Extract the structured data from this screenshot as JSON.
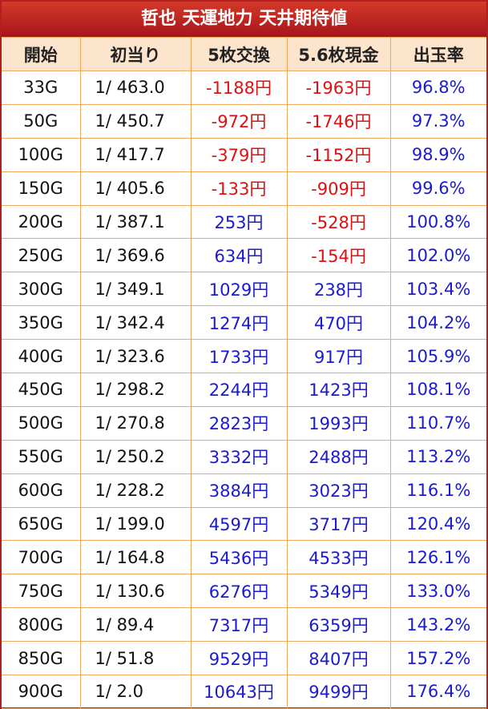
{
  "header": {
    "title": "哲也 天運地力 天井期待値"
  },
  "table": {
    "columns": [
      "開始",
      "初当り",
      "5枚交換",
      "5.6枚現金",
      "出玉率"
    ],
    "rows": [
      [
        "33G",
        "1/ 463.0",
        "-1188円",
        "-1963円",
        "96.8%"
      ],
      [
        "50G",
        "1/ 450.7",
        "-972円",
        "-1746円",
        "97.3%"
      ],
      [
        "100G",
        "1/ 417.7",
        "-379円",
        "-1152円",
        "98.9%"
      ],
      [
        "150G",
        "1/ 405.6",
        "-133円",
        "-909円",
        "99.6%"
      ],
      [
        "200G",
        "1/ 387.1",
        "253円",
        "-528円",
        "100.8%"
      ],
      [
        "250G",
        "1/ 369.6",
        "634円",
        "-154円",
        "102.0%"
      ],
      [
        "300G",
        "1/ 349.1",
        "1029円",
        "238円",
        "103.4%"
      ],
      [
        "350G",
        "1/ 342.4",
        "1274円",
        "470円",
        "104.2%"
      ],
      [
        "400G",
        "1/ 323.6",
        "1733円",
        "917円",
        "105.9%"
      ],
      [
        "450G",
        "1/ 298.2",
        "2244円",
        "1423円",
        "108.1%"
      ],
      [
        "500G",
        "1/ 270.8",
        "2823円",
        "1993円",
        "110.7%"
      ],
      [
        "550G",
        "1/ 250.2",
        "3332円",
        "2488円",
        "113.2%"
      ],
      [
        "600G",
        "1/ 228.2",
        "3884円",
        "3023円",
        "116.1%"
      ],
      [
        "650G",
        "1/ 199.0",
        "4597円",
        "3717円",
        "120.4%"
      ],
      [
        "700G",
        "1/ 164.8",
        "5436円",
        "4533円",
        "126.1%"
      ],
      [
        "750G",
        "1/ 130.6",
        "6276円",
        "5349円",
        "133.0%"
      ],
      [
        "800G",
        "1/ 89.4",
        "7317円",
        "6359円",
        "143.2%"
      ],
      [
        "850G",
        "1/ 51.8",
        "9529円",
        "8407円",
        "157.2%"
      ],
      [
        "900G",
        "1/ 2.0",
        "10643円",
        "9499円",
        "176.4%"
      ]
    ]
  }
}
